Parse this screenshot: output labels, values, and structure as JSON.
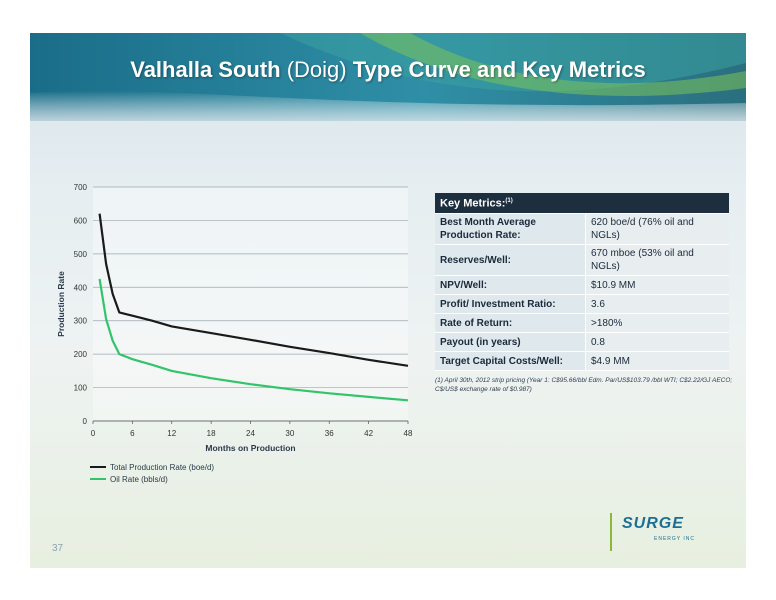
{
  "slide": {
    "title_bold_1": "Valhalla South",
    "title_paren": " (Doig) ",
    "title_bold_2": "Type Curve and Key Metrics",
    "page_number": "37"
  },
  "logo": {
    "name": "SURGE",
    "subtitle": "ENERGY INC"
  },
  "metrics": {
    "header": "Key Metrics:",
    "header_sup": "(1)",
    "rows": [
      {
        "label": "Best Month Average Production Rate:",
        "value": "620 boe/d (76% oil and NGLs)"
      },
      {
        "label": "Reserves/Well:",
        "value": "670 mboe (53% oil and NGLs)"
      },
      {
        "label": "NPV/Well:",
        "value": "$10.9 MM"
      },
      {
        "label": "Profit/ Investment Ratio:",
        "value": "3.6"
      },
      {
        "label": "Rate of Return:",
        "value": ">180%"
      },
      {
        "label": "Payout (in years)",
        "value": "0.8"
      },
      {
        "label": "Target Capital Costs/Well:",
        "value": "$4.9 MM"
      }
    ],
    "footnote": "(1) April 30th, 2012 strip pricing (Year 1: C$95.66/bbl Edm. Par/US$103.79 /bbl WTI; C$2.22/GJ AECO; C$/US$ exchange rate of $0.987)"
  },
  "colors": {
    "total": "#1a1a1a",
    "oil": "#33c46b",
    "header_bg": "#1d2e3e"
  },
  "chart_data": {
    "type": "line",
    "xlabel": "Months on Production",
    "ylabel": "Production Rate",
    "xlim": [
      0,
      48
    ],
    "ylim": [
      0,
      700
    ],
    "xticks": [
      0,
      6,
      12,
      18,
      24,
      30,
      36,
      42,
      48
    ],
    "yticks": [
      0,
      100,
      200,
      300,
      400,
      500,
      600,
      700
    ],
    "grid": "horizontal",
    "legend": "bottom-left",
    "series": [
      {
        "name": "Total Production Rate (boe/d)",
        "color": "#1a1a1a",
        "x": [
          1,
          2,
          3,
          4,
          6,
          9,
          12,
          18,
          24,
          30,
          36,
          42,
          48
        ],
        "y": [
          620,
          470,
          380,
          325,
          315,
          300,
          283,
          263,
          243,
          222,
          203,
          183,
          165
        ]
      },
      {
        "name": "Oil Rate (bbls/d)",
        "color": "#33c46b",
        "x": [
          1,
          2,
          3,
          4,
          6,
          9,
          12,
          18,
          24,
          30,
          36,
          42,
          48
        ],
        "y": [
          425,
          305,
          240,
          200,
          185,
          168,
          150,
          128,
          110,
          95,
          83,
          72,
          62
        ]
      }
    ]
  }
}
